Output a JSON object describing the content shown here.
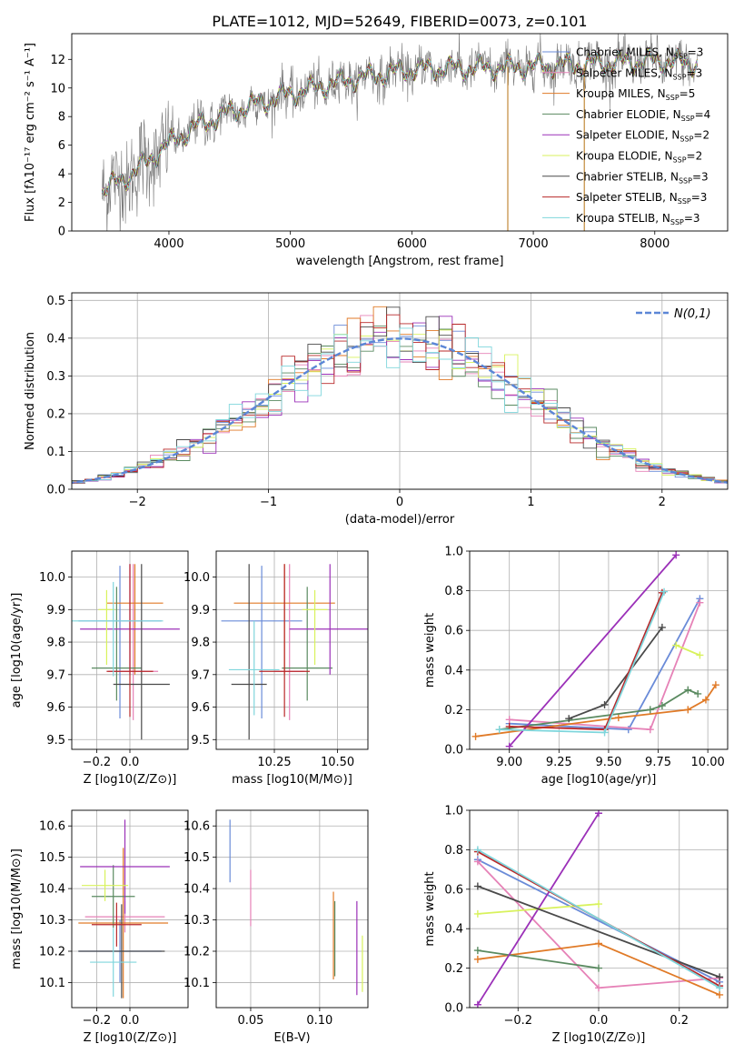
{
  "figure": {
    "title": "PLATE=1012, MJD=52649, FIBERID=0073, z=0.101"
  },
  "models": [
    {
      "label": "Chabrier MILES, N",
      "sub": "SSP",
      "tail": "=3",
      "color": "#6a8bd8"
    },
    {
      "label": "Salpeter MILES, N",
      "sub": "SSP",
      "tail": "=3",
      "color": "#e682b7"
    },
    {
      "label": "Kroupa MILES, N",
      "sub": "SSP",
      "tail": "=5",
      "color": "#e07a27"
    },
    {
      "label": "Chabrier ELODIE, N",
      "sub": "SSP",
      "tail": "=4",
      "color": "#5a8a60"
    },
    {
      "label": "Salpeter ELODIE, N",
      "sub": "SSP",
      "tail": "=2",
      "color": "#9b30b8"
    },
    {
      "label": "Kroupa ELODIE, N",
      "sub": "SSP",
      "tail": "=2",
      "color": "#d8f25c"
    },
    {
      "label": "Chabrier STELIB, N",
      "sub": "SSP",
      "tail": "=3",
      "color": "#4a4a4a"
    },
    {
      "label": "Salpeter STELIB, N",
      "sub": "SSP",
      "tail": "=3",
      "color": "#b8282a"
    },
    {
      "label": "Kroupa STELIB, N",
      "sub": "SSP",
      "tail": "=3",
      "color": "#7fd6dc"
    }
  ],
  "chart_data": [
    {
      "id": "spectrum",
      "type": "line",
      "xlabel": "wavelength [Angstrom, rest frame]",
      "ylabel": "Flux [fλ10⁻¹⁷ erg cm⁻² s⁻¹ A⁻¹]",
      "xlim": [
        3200,
        8600
      ],
      "ylim": [
        0,
        13.8
      ],
      "xticks": [
        4000,
        5000,
        6000,
        7000,
        8000
      ],
      "yticks": [
        0,
        2,
        4,
        6,
        8,
        10,
        12
      ],
      "x_range_data": [
        3450,
        8350
      ],
      "continuum": [
        [
          3450,
          2.8
        ],
        [
          3700,
          4.0
        ],
        [
          3950,
          5.8
        ],
        [
          4200,
          7.2
        ],
        [
          4500,
          8.3
        ],
        [
          5000,
          9.6
        ],
        [
          5500,
          10.6
        ],
        [
          6000,
          11.3
        ],
        [
          6500,
          11.4
        ],
        [
          7000,
          11.5
        ],
        [
          7500,
          11.7
        ],
        [
          8000,
          11.9
        ],
        [
          8350,
          11.7
        ]
      ],
      "spikes_down": [
        6790,
        7420
      ],
      "grid": false
    },
    {
      "id": "residuals",
      "type": "line",
      "xlabel": "(data-model)/error",
      "ylabel": "Normed distribution",
      "xlim": [
        -2.5,
        2.5
      ],
      "ylim": [
        0,
        0.52
      ],
      "xticks": [
        -2,
        -1,
        0,
        1,
        2
      ],
      "yticks": [
        0.0,
        0.1,
        0.2,
        0.3,
        0.4,
        0.5
      ],
      "legend": "N(0,1)",
      "gaussian": {
        "mean": 0,
        "sigma": 1
      },
      "grid": true
    },
    {
      "id": "age-vs-Z",
      "type": "scatter",
      "xlabel": "Z [log10(Z/Z⊙)]",
      "ylabel": "age  [log10(age/yr)]",
      "xlim": [
        -0.35,
        0.35
      ],
      "ylim": [
        9.47,
        10.08
      ],
      "xticks": [
        -0.2,
        0.0
      ],
      "yticks": [
        9.5,
        9.6,
        9.7,
        9.8,
        9.9,
        10.0
      ],
      "points": [
        {
          "x": -0.06,
          "y": 9.865,
          "xerr": 0.25,
          "yerr": [
            0.3,
            0.17
          ]
        },
        {
          "x": 0.02,
          "y": 9.71,
          "xerr": 0.15,
          "yerr": [
            0.15,
            0.33
          ]
        },
        {
          "x": 0.03,
          "y": 9.92,
          "xerr": 0.17,
          "yerr": [
            0.22,
            0.12
          ]
        },
        {
          "x": -0.08,
          "y": 9.72,
          "xerr": 0.15,
          "yerr": [
            0.1,
            0.25
          ]
        },
        {
          "x": 0.0,
          "y": 9.84,
          "xerr": 0.3,
          "yerr": [
            0.14,
            0.2
          ]
        },
        {
          "x": -0.14,
          "y": 9.9,
          "xerr": 0.05,
          "yerr": [
            0.17,
            0.06
          ]
        },
        {
          "x": 0.07,
          "y": 9.67,
          "xerr": 0.17,
          "yerr": [
            0.17,
            0.37
          ]
        },
        {
          "x": 0.0,
          "y": 9.71,
          "xerr": 0.14,
          "yerr": [
            0.14,
            0.33
          ]
        },
        {
          "x": -0.1,
          "y": 9.865,
          "xerr": 0.3,
          "yerr": [
            0.17,
            0.12
          ]
        }
      ]
    },
    {
      "id": "age-vs-mass",
      "type": "scatter",
      "xlabel": "mass [log10(M/M⊙)]",
      "ylabel": "",
      "xlim": [
        10.02,
        10.62
      ],
      "ylim": [
        9.47,
        10.08
      ],
      "xticks": [
        10.25,
        10.5
      ],
      "yticks": [
        9.5,
        9.6,
        9.7,
        9.8,
        9.9,
        10.0
      ],
      "points": [
        {
          "x": 10.2,
          "y": 9.865,
          "xerr": 0.16,
          "yerr": [
            0.3,
            0.17
          ]
        },
        {
          "x": 10.31,
          "y": 9.71,
          "xerr": 0.06,
          "yerr": [
            0.15,
            0.33
          ]
        },
        {
          "x": 10.29,
          "y": 9.92,
          "xerr": 0.2,
          "yerr": [
            0.22,
            0.12
          ]
        },
        {
          "x": 10.38,
          "y": 9.72,
          "xerr": 0.1,
          "yerr": [
            0.1,
            0.25
          ]
        },
        {
          "x": 10.47,
          "y": 9.84,
          "xerr": 0.16,
          "yerr": [
            0.14,
            0.2
          ]
        },
        {
          "x": 10.41,
          "y": 9.9,
          "xerr": 0.05,
          "yerr": [
            0.17,
            0.06
          ]
        },
        {
          "x": 10.15,
          "y": 9.67,
          "xerr": 0.07,
          "yerr": [
            0.17,
            0.37
          ]
        },
        {
          "x": 10.29,
          "y": 9.71,
          "xerr": 0.1,
          "yerr": [
            0.14,
            0.33
          ]
        },
        {
          "x": 10.17,
          "y": 9.715,
          "xerr": 0.1,
          "yerr": [
            0.14,
            0.15
          ]
        }
      ]
    },
    {
      "id": "weight-vs-age",
      "type": "line",
      "xlabel": "age  [log10(age/yr)]",
      "ylabel": "mass weight",
      "xlim": [
        8.8,
        10.1
      ],
      "ylim": [
        0.0,
        1.0
      ],
      "xticks": [
        9.0,
        9.25,
        9.5,
        9.75,
        10.0
      ],
      "yticks": [
        0.0,
        0.2,
        0.4,
        0.6,
        0.8,
        1.0
      ],
      "series": [
        {
          "x": [
            9.0,
            9.6,
            9.96
          ],
          "y": [
            0.13,
            0.1,
            0.76
          ]
        },
        {
          "x": [
            9.0,
            9.71,
            9.96
          ],
          "y": [
            0.15,
            0.1,
            0.74
          ]
        },
        {
          "x": [
            8.83,
            9.55,
            9.9,
            9.99,
            10.04
          ],
          "y": [
            0.065,
            0.16,
            0.2,
            0.25,
            0.325
          ]
        },
        {
          "x": [
            8.95,
            9.71,
            9.77,
            9.9,
            9.95
          ],
          "y": [
            0.1,
            0.2,
            0.22,
            0.3,
            0.28
          ]
        },
        {
          "x": [
            9.0,
            9.84
          ],
          "y": [
            0.015,
            0.98
          ]
        },
        {
          "x": [
            9.84,
            9.96
          ],
          "y": [
            0.525,
            0.475
          ]
        },
        {
          "x": [
            9.3,
            9.48,
            9.77
          ],
          "y": [
            0.155,
            0.225,
            0.615
          ]
        },
        {
          "x": [
            9.0,
            9.48,
            9.77
          ],
          "y": [
            0.115,
            0.1,
            0.79
          ]
        },
        {
          "x": [
            8.95,
            9.48,
            9.78
          ],
          "y": [
            0.1,
            0.085,
            0.795
          ]
        }
      ]
    },
    {
      "id": "mass-vs-Z",
      "type": "scatter",
      "xlabel": "Z [log10(Z/Z⊙)]",
      "ylabel": "mass [log10(M/M⊙)]",
      "xlim": [
        -0.35,
        0.35
      ],
      "ylim": [
        10.02,
        10.65
      ],
      "xticks": [
        -0.2,
        0.0
      ],
      "yticks": [
        10.1,
        10.2,
        10.3,
        10.4,
        10.5,
        10.6
      ],
      "points": [
        {
          "x": -0.06,
          "y": 10.2,
          "xerr": 0.25,
          "yerr": 0.1
        },
        {
          "x": -0.03,
          "y": 10.31,
          "xerr": 0.24,
          "yerr": 0.05
        },
        {
          "x": -0.04,
          "y": 10.29,
          "xerr": 0.27,
          "yerr": 0.24
        },
        {
          "x": -0.1,
          "y": 10.375,
          "xerr": 0.13,
          "yerr": 0.1
        },
        {
          "x": -0.03,
          "y": 10.47,
          "xerr": 0.27,
          "yerr": 0.15
        },
        {
          "x": -0.15,
          "y": 10.41,
          "xerr": 0.14,
          "yerr": 0.05
        },
        {
          "x": -0.05,
          "y": 10.2,
          "xerr": 0.26,
          "yerr": 0.15
        },
        {
          "x": -0.08,
          "y": 10.285,
          "xerr": 0.15,
          "yerr": 0.07
        },
        {
          "x": -0.1,
          "y": 10.165,
          "xerr": 0.14,
          "yerr": 0.11
        }
      ]
    },
    {
      "id": "mass-vs-EBV",
      "type": "scatter",
      "xlabel": "E(B-V)",
      "ylabel": "",
      "xlim": [
        0.025,
        0.135
      ],
      "ylim": [
        10.02,
        10.65
      ],
      "xticks": [
        0.05,
        0.1
      ],
      "yticks": [
        10.1,
        10.2,
        10.3,
        10.4,
        10.5,
        10.6
      ],
      "points": [
        {
          "x": 0.035,
          "y": 10.52,
          "yerr": 0.1
        },
        {
          "x": 0.05,
          "y": 10.37,
          "yerr": 0.09
        },
        {
          "x": 0.11,
          "y": 10.25,
          "yerr": 0.14
        },
        {
          "x": 0.111,
          "y": 10.24,
          "yerr": 0.12
        },
        {
          "x": 0.127,
          "y": 10.21,
          "yerr": 0.15
        },
        {
          "x": 0.131,
          "y": 10.16,
          "yerr": 0.09
        }
      ]
    },
    {
      "id": "weight-vs-Z",
      "type": "line",
      "xlabel": "Z [log10(Z/Z⊙)]",
      "ylabel": "mass weight",
      "xlim": [
        -0.32,
        0.32
      ],
      "ylim": [
        0.0,
        1.0
      ],
      "xticks": [
        -0.2,
        0.0,
        0.2
      ],
      "yticks": [
        0.0,
        0.2,
        0.4,
        0.6,
        0.8,
        1.0
      ],
      "series": [
        {
          "x": [
            -0.3,
            0.3
          ],
          "y": [
            0.75,
            0.13
          ]
        },
        {
          "x": [
            -0.3,
            0.0,
            0.3
          ],
          "y": [
            0.74,
            0.1,
            0.15
          ]
        },
        {
          "x": [
            -0.3,
            0.0,
            0.3
          ],
          "y": [
            0.245,
            0.325,
            0.065
          ]
        },
        {
          "x": [
            -0.3,
            0.0
          ],
          "y": [
            0.29,
            0.2
          ]
        },
        {
          "x": [
            -0.3,
            0.0
          ],
          "y": [
            0.015,
            0.985
          ]
        },
        {
          "x": [
            -0.3,
            0.0
          ],
          "y": [
            0.475,
            0.525
          ]
        },
        {
          "x": [
            -0.3,
            0.3
          ],
          "y": [
            0.615,
            0.155
          ]
        },
        {
          "x": [
            -0.3,
            0.3
          ],
          "y": [
            0.79,
            0.11
          ]
        },
        {
          "x": [
            -0.3,
            0.3
          ],
          "y": [
            0.8,
            0.1
          ]
        }
      ]
    }
  ]
}
